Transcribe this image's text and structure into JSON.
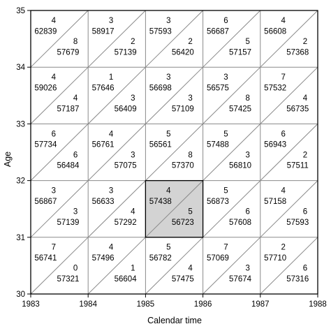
{
  "chart_data": {
    "type": "lexis-diagram",
    "xlabel": "Calendar time",
    "ylabel": "Age",
    "x_ticks": [
      "1983",
      "1984",
      "1985",
      "1986",
      "1987",
      "1988"
    ],
    "y_ticks": [
      "30",
      "31",
      "32",
      "33",
      "34",
      "35"
    ],
    "xlim": [
      1983,
      1988
    ],
    "ylim": [
      30,
      35
    ],
    "highlight": {
      "year": 1985,
      "age": 31,
      "fill": "#d3d3d3"
    },
    "cells": [
      {
        "year": 1983,
        "age": 34,
        "upper_deaths": "4",
        "upper_exposure": "62839",
        "lower_deaths": "8",
        "lower_exposure": "57679"
      },
      {
        "year": 1984,
        "age": 34,
        "upper_deaths": "3",
        "upper_exposure": "58917",
        "lower_deaths": "2",
        "lower_exposure": "57139"
      },
      {
        "year": 1985,
        "age": 34,
        "upper_deaths": "3",
        "upper_exposure": "57593",
        "lower_deaths": "2",
        "lower_exposure": "56420"
      },
      {
        "year": 1986,
        "age": 34,
        "upper_deaths": "6",
        "upper_exposure": "56687",
        "lower_deaths": "5",
        "lower_exposure": "57157"
      },
      {
        "year": 1987,
        "age": 34,
        "upper_deaths": "4",
        "upper_exposure": "56608",
        "lower_deaths": "2",
        "lower_exposure": "57368"
      },
      {
        "year": 1983,
        "age": 33,
        "upper_deaths": "4",
        "upper_exposure": "59026",
        "lower_deaths": "4",
        "lower_exposure": "57187"
      },
      {
        "year": 1984,
        "age": 33,
        "upper_deaths": "1",
        "upper_exposure": "57646",
        "lower_deaths": "3",
        "lower_exposure": "56409"
      },
      {
        "year": 1985,
        "age": 33,
        "upper_deaths": "3",
        "upper_exposure": "56698",
        "lower_deaths": "3",
        "lower_exposure": "57109"
      },
      {
        "year": 1986,
        "age": 33,
        "upper_deaths": "3",
        "upper_exposure": "56575",
        "lower_deaths": "8",
        "lower_exposure": "57425"
      },
      {
        "year": 1987,
        "age": 33,
        "upper_deaths": "7",
        "upper_exposure": "57532",
        "lower_deaths": "4",
        "lower_exposure": "56735"
      },
      {
        "year": 1983,
        "age": 32,
        "upper_deaths": "6",
        "upper_exposure": "57734",
        "lower_deaths": "6",
        "lower_exposure": "56484"
      },
      {
        "year": 1984,
        "age": 32,
        "upper_deaths": "4",
        "upper_exposure": "56761",
        "lower_deaths": "3",
        "lower_exposure": "57075"
      },
      {
        "year": 1985,
        "age": 32,
        "upper_deaths": "5",
        "upper_exposure": "56561",
        "lower_deaths": "8",
        "lower_exposure": "57370"
      },
      {
        "year": 1986,
        "age": 32,
        "upper_deaths": "5",
        "upper_exposure": "57488",
        "lower_deaths": "3",
        "lower_exposure": "56810"
      },
      {
        "year": 1987,
        "age": 32,
        "upper_deaths": "6",
        "upper_exposure": "56943",
        "lower_deaths": "2",
        "lower_exposure": "57511"
      },
      {
        "year": 1983,
        "age": 31,
        "upper_deaths": "3",
        "upper_exposure": "56867",
        "lower_deaths": "3",
        "lower_exposure": "57139"
      },
      {
        "year": 1984,
        "age": 31,
        "upper_deaths": "3",
        "upper_exposure": "56633",
        "lower_deaths": "4",
        "lower_exposure": "57292"
      },
      {
        "year": 1985,
        "age": 31,
        "upper_deaths": "4",
        "upper_exposure": "57438",
        "lower_deaths": "5",
        "lower_exposure": "56723"
      },
      {
        "year": 1986,
        "age": 31,
        "upper_deaths": "5",
        "upper_exposure": "56873",
        "lower_deaths": "6",
        "lower_exposure": "57608"
      },
      {
        "year": 1987,
        "age": 31,
        "upper_deaths": "4",
        "upper_exposure": "57158",
        "lower_deaths": "6",
        "lower_exposure": "57593"
      },
      {
        "year": 1983,
        "age": 30,
        "upper_deaths": "7",
        "upper_exposure": "56741",
        "lower_deaths": "0",
        "lower_exposure": "57321"
      },
      {
        "year": 1984,
        "age": 30,
        "upper_deaths": "4",
        "upper_exposure": "57496",
        "lower_deaths": "1",
        "lower_exposure": "56604"
      },
      {
        "year": 1985,
        "age": 30,
        "upper_deaths": "5",
        "upper_exposure": "56782",
        "lower_deaths": "4",
        "lower_exposure": "57475"
      },
      {
        "year": 1986,
        "age": 30,
        "upper_deaths": "7",
        "upper_exposure": "57069",
        "lower_deaths": "3",
        "lower_exposure": "57674"
      },
      {
        "year": 1987,
        "age": 30,
        "upper_deaths": "2",
        "upper_exposure": "57710",
        "lower_deaths": "6",
        "lower_exposure": "57316"
      }
    ]
  }
}
